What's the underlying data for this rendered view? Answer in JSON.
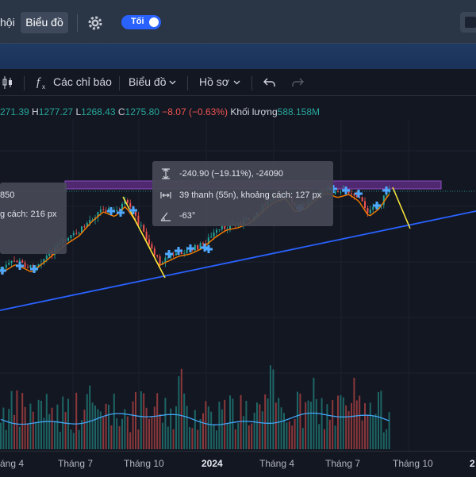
{
  "topbar": {
    "tab_doi": "hội",
    "tab_bieudo": "Biểu đồ",
    "toggle_label": "Tối"
  },
  "toolbar": {
    "indicators": "Các chỉ báo",
    "chart": "Biểu đồ",
    "profile": "Hồ sơ",
    "undo_icon": "undo-icon",
    "redo_icon": "redo-icon"
  },
  "ohlc": {
    "open_value": "271.39",
    "high_label": "H",
    "high_value": "1277.27",
    "low_label": "L",
    "low_value": "1268.43",
    "close_label": "C",
    "close_value": "1275.80",
    "change": "−8.07 (−0.63%)",
    "volume_label": "Khối lượng",
    "volume_value": "588.158M"
  },
  "tooltip_left": {
    "line1": "850",
    "line2": "g cách: 216 px"
  },
  "tooltip_right": {
    "price_range": "-240.90 (−19.11%), -24090",
    "bars_range": "39 thanh (55n), khoảng cách: 127 px",
    "angle": "-63°"
  },
  "xaxis": {
    "labels": [
      {
        "text": "áng 4",
        "bold": false
      },
      {
        "text": "Tháng 7",
        "bold": false
      },
      {
        "text": "Tháng 10",
        "bold": false
      },
      {
        "text": "2024",
        "bold": true
      },
      {
        "text": "Tháng 4",
        "bold": false
      },
      {
        "text": "Tháng 7",
        "bold": false
      },
      {
        "text": "Tháng 10",
        "bold": false
      },
      {
        "text": "2",
        "bold": true
      }
    ]
  },
  "colors": {
    "background": "#131722",
    "trendline": "#2962ff",
    "fib_line": "#ffeb3b",
    "ma_line": "#f57c00",
    "up": "#26a69a",
    "down": "#ef5350",
    "zone": "#7b3fa8",
    "volume_ma": "#42a5f5"
  }
}
